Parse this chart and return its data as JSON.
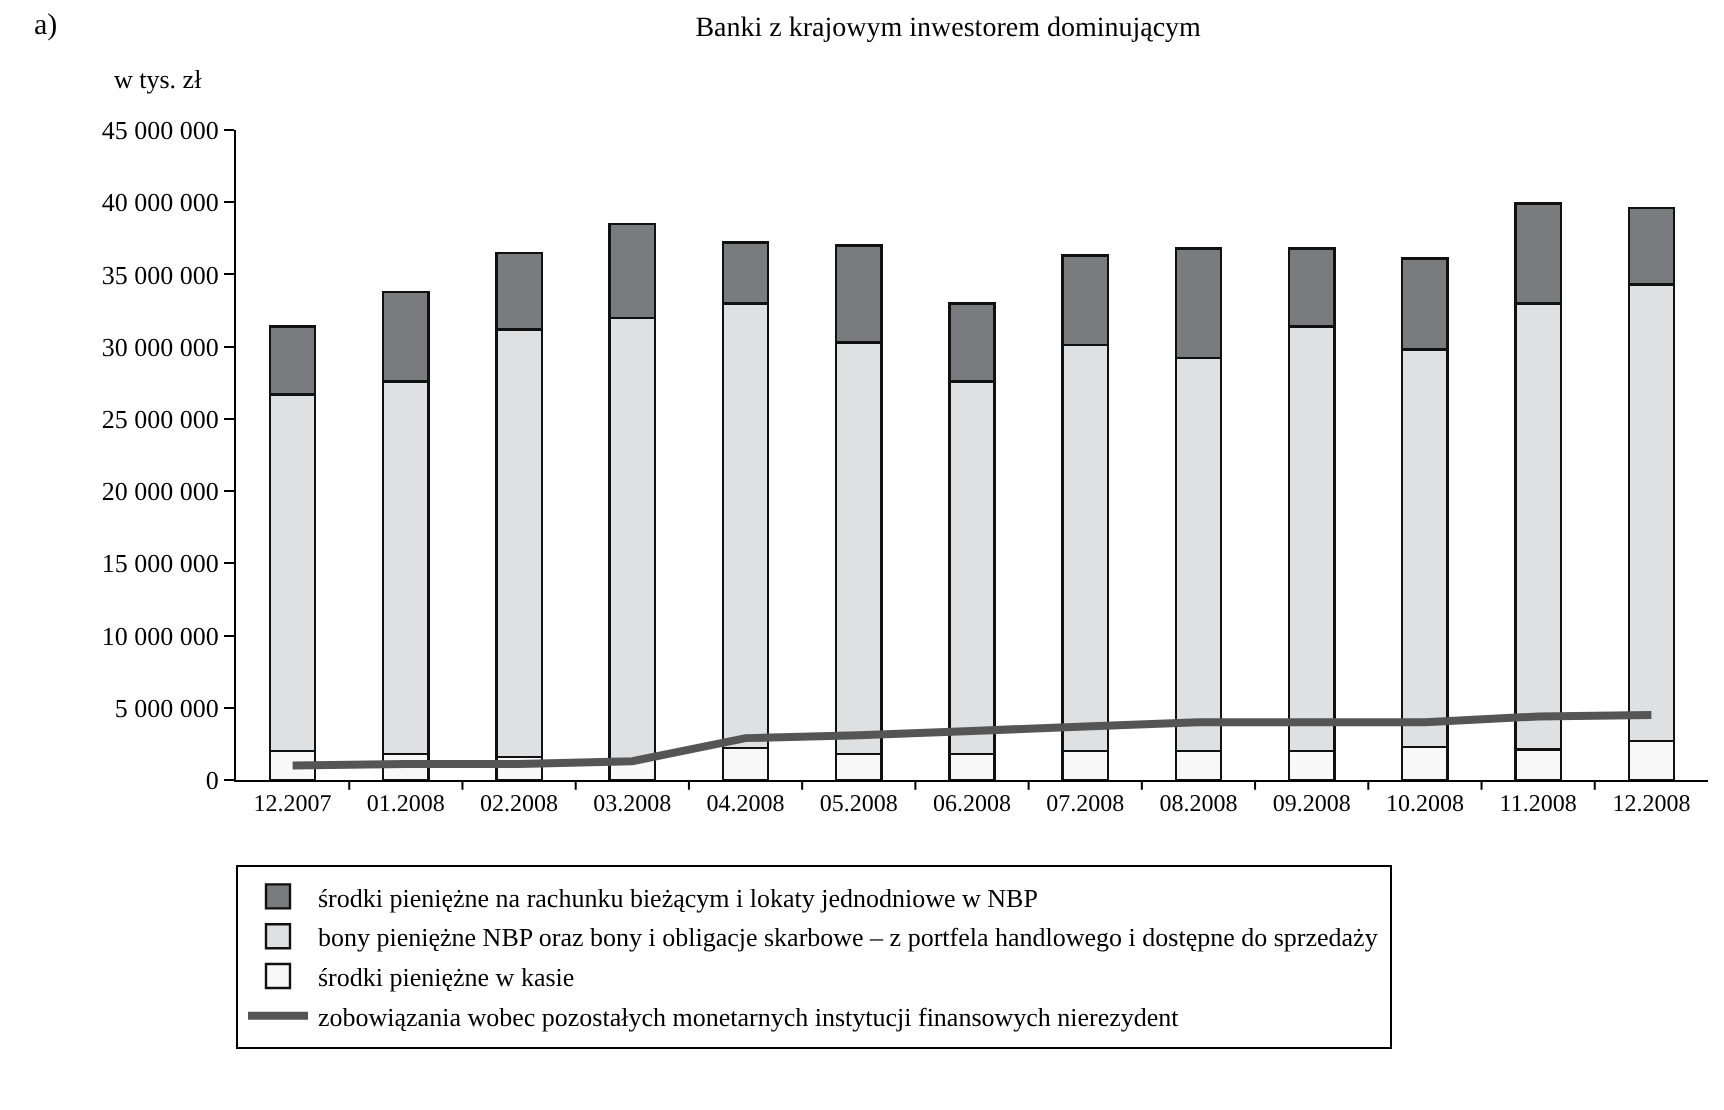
{
  "chart_data": {
    "type": "bar",
    "title": "Banki z krajowym inwestorem dominującym",
    "ylabel": "w tys. zł",
    "annotations": [
      "a)"
    ],
    "categories": [
      "12.2007",
      "01.2008",
      "02.2008",
      "03.2008",
      "04.2008",
      "05.2008",
      "06.2008",
      "07.2008",
      "08.2008",
      "09.2008",
      "10.2008",
      "11.2008",
      "12.2008"
    ],
    "stacked": true,
    "series": [
      {
        "name": "środki pieniężne w kasie",
        "color": "#f8f8f8",
        "values": [
          2000000,
          1800000,
          1600000,
          1400000,
          2200000,
          1800000,
          1800000,
          2000000,
          2000000,
          2000000,
          2300000,
          2100000,
          2700000
        ]
      },
      {
        "name": "bony pieniężne NBP oraz bony i obligacje skarbowe – z portfela handlowego i dostępne do sprzedaży",
        "color": "#dfe0e2",
        "values": [
          24700000,
          25800000,
          29600000,
          30600000,
          30800000,
          28500000,
          25800000,
          28100000,
          27200000,
          29400000,
          27500000,
          30900000,
          31600000
        ]
      },
      {
        "name": "środki pieniężne na rachunku bieżącym i lokaty jednodniowe w NBP",
        "color": "#7a7b7e",
        "values": [
          4700000,
          6200000,
          5300000,
          6500000,
          4200000,
          6700000,
          5400000,
          6200000,
          7600000,
          5400000,
          6300000,
          6900000,
          5300000
        ]
      },
      {
        "name": "zobowiązania wobec pozostałych monetarnych instytucji finansowych nierezydent",
        "color": "#555555",
        "type": "line",
        "values": [
          1000000,
          1100000,
          1100000,
          1300000,
          2900000,
          3100000,
          3400000,
          3700000,
          4000000,
          4000000,
          4000000,
          4400000,
          4500000
        ]
      }
    ],
    "ylim": [
      0,
      45000000
    ],
    "yticks": [
      0,
      {
        "value": 5000000,
        "label": "5 000 000"
      },
      {
        "value": 10000000,
        "label": "10 000 000"
      },
      {
        "value": 15000000,
        "label": "15 000 000"
      },
      {
        "value": 20000000,
        "label": "20 000 000"
      },
      {
        "value": 25000000,
        "label": "25 000 000"
      },
      {
        "value": 30000000,
        "label": "30 000 000"
      },
      {
        "value": 35000000,
        "label": "35 000 000"
      },
      {
        "value": 40000000,
        "label": "40 000 000"
      },
      {
        "value": 45000000,
        "label": "45 000 000"
      }
    ],
    "grid": false,
    "legend": "bottom",
    "marker": "none",
    "line_style": "solid"
  }
}
